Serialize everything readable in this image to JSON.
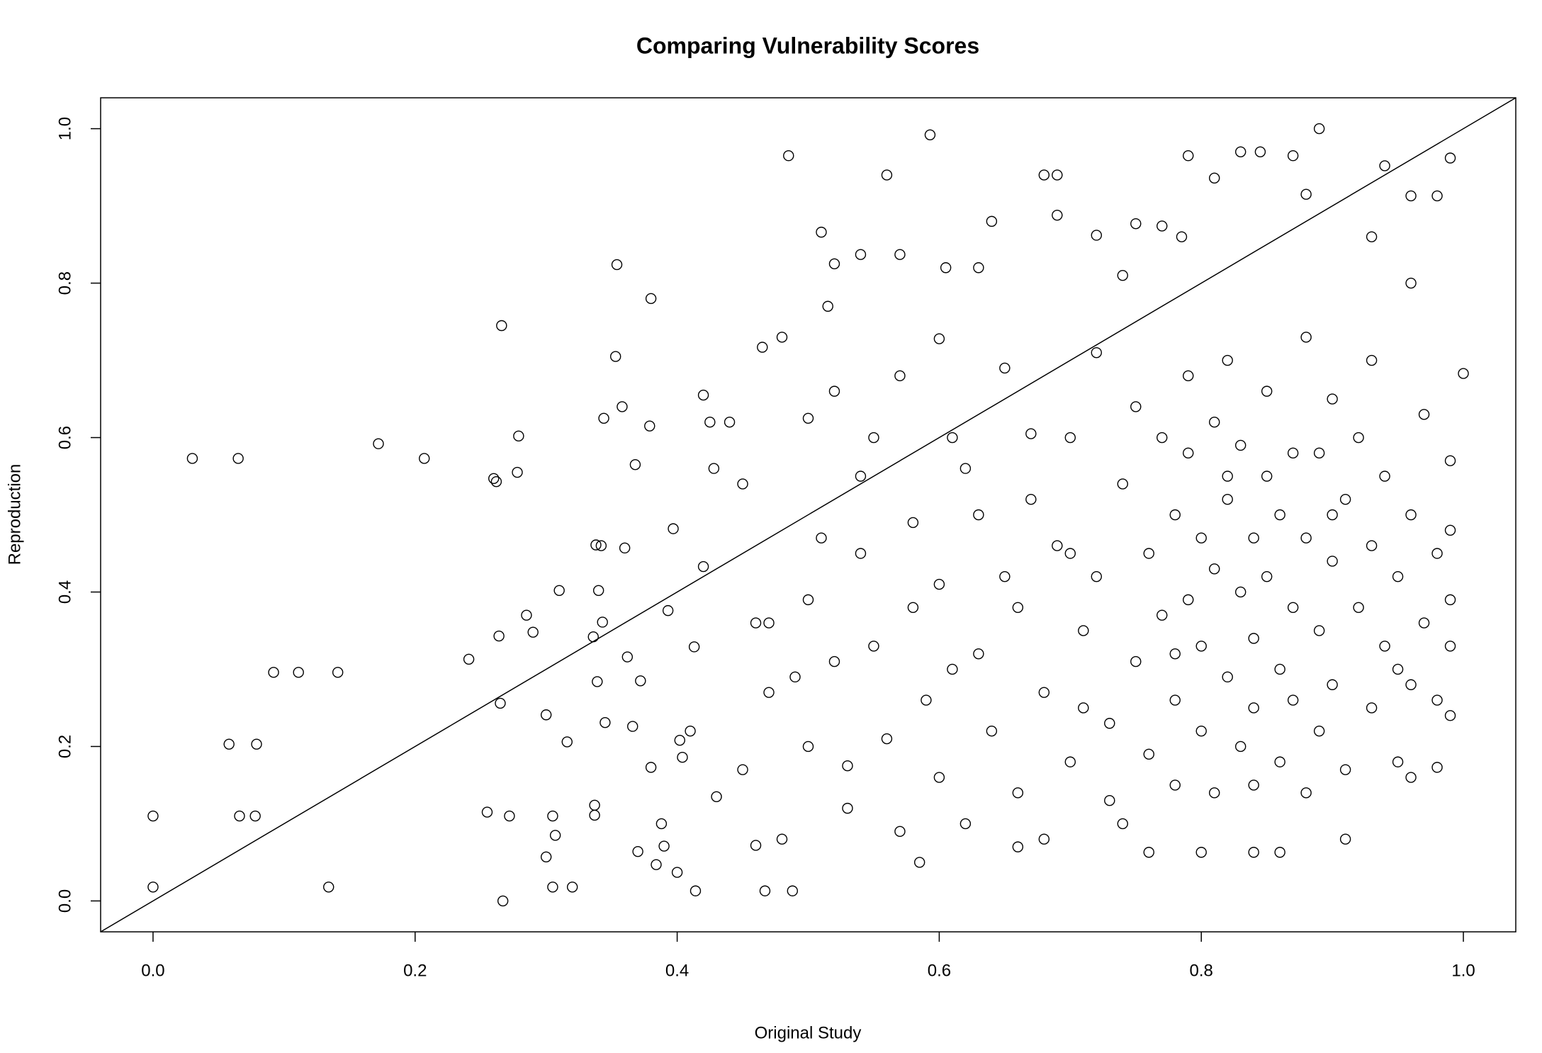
{
  "chart_data": {
    "type": "scatter",
    "title": "Comparing Vulnerability Scores",
    "x_label": "Original Study",
    "y_label": "Reproduction",
    "xlim": [
      -0.04,
      1.04
    ],
    "ylim": [
      -0.04,
      1.04
    ],
    "xticks": [
      {
        "value": 0,
        "label": "0.0"
      },
      0.2,
      0.4,
      0.6,
      0.8,
      {
        "value": 1,
        "label": "1.0"
      }
    ],
    "yticks": [
      {
        "value": 0,
        "label": "0.0"
      },
      0.2,
      0.4,
      0.6,
      0.8,
      {
        "value": 1,
        "label": "1.0"
      }
    ],
    "color": "#000000",
    "reference_line": {
      "intercept": 0,
      "slope": 1
    },
    "x": [
      0.0,
      0.0,
      0.03,
      0.065,
      0.058,
      0.066,
      0.078,
      0.079,
      0.092,
      0.111,
      0.134,
      0.141,
      0.172,
      0.207,
      0.241,
      0.255,
      0.26,
      0.262,
      0.264,
      0.265,
      0.266,
      0.267,
      0.272,
      0.278,
      0.279,
      0.285,
      0.29,
      0.3,
      0.3,
      0.305,
      0.305,
      0.307,
      0.31,
      0.316,
      0.32,
      0.336,
      0.337,
      0.337,
      0.338,
      0.339,
      0.34,
      0.342,
      0.343,
      0.344,
      0.345,
      0.353,
      0.354,
      0.358,
      0.36,
      0.362,
      0.366,
      0.368,
      0.37,
      0.372,
      0.379,
      0.38,
      0.38,
      0.384,
      0.388,
      0.39,
      0.393,
      0.397,
      0.4,
      0.402,
      0.404,
      0.41,
      0.413,
      0.414,
      0.42,
      0.42,
      0.425,
      0.428,
      0.43,
      0.44,
      0.45,
      0.46,
      0.465,
      0.467,
      0.47,
      0.48,
      0.485,
      0.488,
      0.49,
      0.5,
      0.51,
      0.515,
      0.52,
      0.52,
      0.53,
      0.54,
      0.54,
      0.55,
      0.56,
      0.57,
      0.58,
      0.585,
      0.593,
      0.6,
      0.605,
      0.61,
      0.62,
      0.63,
      0.64,
      0.65,
      0.66,
      0.67,
      0.68,
      0.69,
      0.69,
      0.7,
      0.71,
      0.72,
      0.73,
      0.74,
      0.75,
      0.76,
      0.77,
      0.78,
      0.785,
      0.79,
      0.8,
      0.81,
      0.82,
      0.83,
      0.84,
      0.845,
      0.86,
      0.87,
      0.88,
      0.89,
      0.9,
      0.91,
      0.93,
      0.94,
      0.96,
      0.98,
      0.99,
      1.0,
      0.99,
      0.99,
      0.98,
      0.96,
      0.95,
      0.45,
      0.46,
      0.47,
      0.48,
      0.5,
      0.5,
      0.51,
      0.52,
      0.53,
      0.54,
      0.55,
      0.56,
      0.57,
      0.57,
      0.58,
      0.59,
      0.6,
      0.6,
      0.61,
      0.62,
      0.63,
      0.63,
      0.64,
      0.65,
      0.66,
      0.66,
      0.67,
      0.68,
      0.68,
      0.69,
      0.7,
      0.7,
      0.71,
      0.72,
      0.72,
      0.73,
      0.74,
      0.74,
      0.75,
      0.75,
      0.76,
      0.76,
      0.77,
      0.77,
      0.78,
      0.78,
      0.78,
      0.79,
      0.79,
      0.79,
      0.8,
      0.8,
      0.8,
      0.81,
      0.81,
      0.81,
      0.82,
      0.82,
      0.82,
      0.83,
      0.83,
      0.83,
      0.84,
      0.84,
      0.84,
      0.84,
      0.85,
      0.85,
      0.85,
      0.86,
      0.86,
      0.86,
      0.87,
      0.87,
      0.87,
      0.88,
      0.88,
      0.88,
      0.89,
      0.89,
      0.89,
      0.9,
      0.9,
      0.9,
      0.91,
      0.91,
      0.92,
      0.92,
      0.93,
      0.93,
      0.93,
      0.94,
      0.94,
      0.95,
      0.95,
      0.96,
      0.96,
      0.96,
      0.97,
      0.97,
      0.98,
      0.98,
      0.99,
      0.99,
      0.99
    ],
    "values": [
      0.11,
      0.018,
      0.573,
      0.573,
      0.203,
      0.11,
      0.11,
      0.203,
      0.296,
      0.296,
      0.018,
      0.296,
      0.592,
      0.573,
      0.313,
      0.115,
      0.547,
      0.543,
      0.343,
      0.256,
      0.745,
      0.0,
      0.11,
      0.555,
      0.602,
      0.37,
      0.348,
      0.241,
      0.057,
      0.11,
      0.018,
      0.085,
      0.402,
      0.206,
      0.018,
      0.342,
      0.124,
      0.111,
      0.461,
      0.284,
      0.402,
      0.46,
      0.361,
      0.625,
      0.231,
      0.705,
      0.824,
      0.64,
      0.457,
      0.316,
      0.226,
      0.565,
      0.064,
      0.285,
      0.615,
      0.78,
      0.173,
      0.047,
      0.1,
      0.071,
      0.376,
      0.482,
      0.037,
      0.208,
      0.186,
      0.22,
      0.329,
      0.013,
      0.433,
      0.655,
      0.62,
      0.56,
      0.135,
      0.62,
      0.54,
      0.072,
      0.717,
      0.013,
      0.36,
      0.73,
      0.965,
      0.013,
      0.29,
      0.625,
      0.866,
      0.77,
      0.825,
      0.31,
      0.175,
      0.837,
      0.45,
      0.6,
      0.94,
      0.837,
      0.38,
      0.05,
      0.992,
      0.728,
      0.82,
      0.3,
      0.56,
      0.82,
      0.88,
      0.42,
      0.07,
      0.605,
      0.94,
      0.94,
      0.888,
      0.45,
      0.25,
      0.862,
      0.13,
      0.81,
      0.877,
      0.063,
      0.874,
      0.32,
      0.86,
      0.965,
      0.063,
      0.936,
      0.55,
      0.97,
      0.063,
      0.97,
      0.063,
      0.965,
      0.915,
      1.0,
      0.5,
      0.08,
      0.86,
      0.952,
      0.913,
      0.913,
      0.962,
      0.683,
      0.48,
      0.24,
      0.173,
      0.16,
      0.3,
      0.17,
      0.36,
      0.27,
      0.08,
      0.2,
      0.39,
      0.47,
      0.66,
      0.12,
      0.55,
      0.33,
      0.21,
      0.68,
      0.09,
      0.49,
      0.26,
      0.41,
      0.16,
      0.6,
      0.1,
      0.32,
      0.5,
      0.22,
      0.69,
      0.14,
      0.38,
      0.52,
      0.27,
      0.08,
      0.46,
      0.6,
      0.18,
      0.35,
      0.71,
      0.42,
      0.23,
      0.54,
      0.1,
      0.31,
      0.64,
      0.45,
      0.19,
      0.6,
      0.37,
      0.5,
      0.26,
      0.15,
      0.58,
      0.39,
      0.68,
      0.47,
      0.22,
      0.33,
      0.62,
      0.14,
      0.43,
      0.52,
      0.29,
      0.7,
      0.4,
      0.2,
      0.59,
      0.47,
      0.34,
      0.25,
      0.15,
      0.66,
      0.55,
      0.42,
      0.3,
      0.5,
      0.18,
      0.38,
      0.58,
      0.26,
      0.47,
      0.73,
      0.14,
      0.35,
      0.58,
      0.22,
      0.44,
      0.65,
      0.28,
      0.52,
      0.17,
      0.38,
      0.6,
      0.25,
      0.46,
      0.7,
      0.33,
      0.55,
      0.18,
      0.42,
      0.28,
      0.5,
      0.8,
      0.36,
      0.63,
      0.45,
      0.26,
      0.57,
      0.33,
      0.39
    ]
  }
}
